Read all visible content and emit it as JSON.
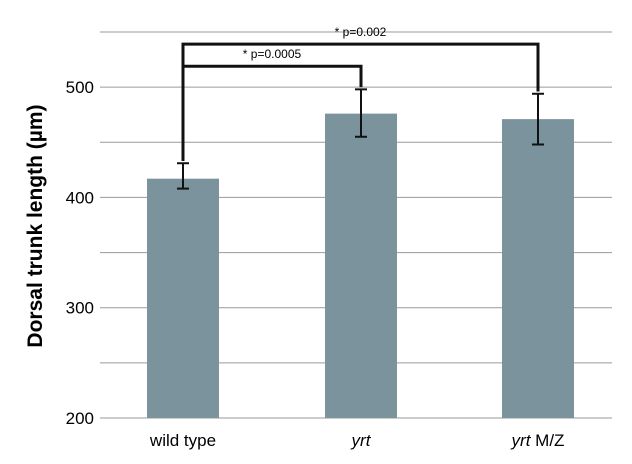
{
  "chart_data": {
    "type": "bar",
    "ylabel": "Dorsal trunk length (µm)",
    "xlabel": "",
    "ylim": [
      200,
      550
    ],
    "yticks": [
      200,
      300,
      400,
      500
    ],
    "grid": true,
    "categories": [
      {
        "label": "wild type",
        "italic_prefix": "",
        "suffix": "wild type"
      },
      {
        "label": "yrt",
        "italic_prefix": "yrt",
        "suffix": ""
      },
      {
        "label": "yrt M/Z",
        "italic_prefix": "yrt",
        "suffix": " M/Z"
      }
    ],
    "values": [
      417,
      476,
      471
    ],
    "errors": [
      {
        "low": 408,
        "high": 431
      },
      {
        "low": 455,
        "high": 498
      },
      {
        "low": 448,
        "high": 494
      }
    ],
    "bar_color": "#7b939c",
    "annotations": [
      {
        "text": "* p=0.0005",
        "from": 0,
        "to": 1,
        "level": 519
      },
      {
        "text": "* p=0.002",
        "from": 0,
        "to": 2,
        "level": 539
      }
    ]
  }
}
